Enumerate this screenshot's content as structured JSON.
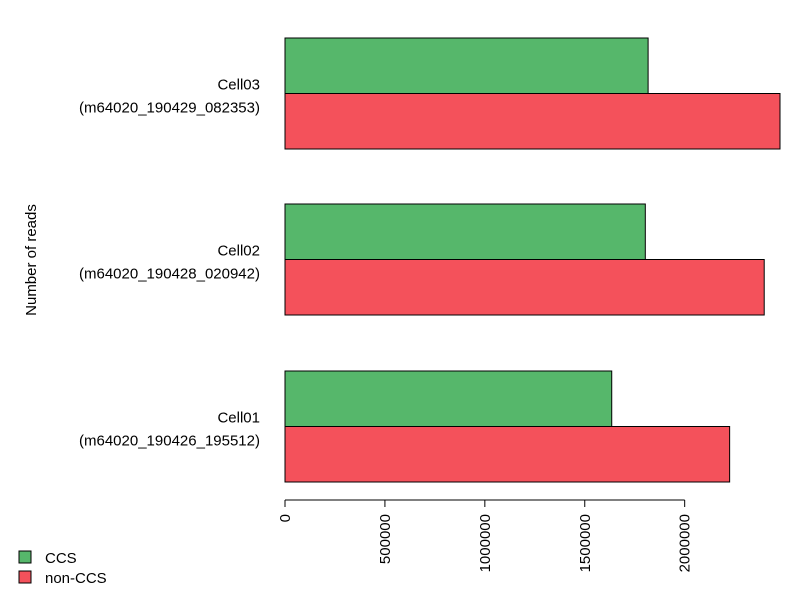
{
  "chart_data": {
    "type": "bar",
    "orientation": "horizontal",
    "categories": [
      {
        "name": "Cell01",
        "id": "(m64020_190426_195512)"
      },
      {
        "name": "Cell02",
        "id": "(m64020_190428_020942)"
      },
      {
        "name": "Cell03",
        "id": "(m64020_190429_082353)"
      }
    ],
    "series": [
      {
        "name": "CCS",
        "color": "#56b76b",
        "values": [
          1635000,
          1803000,
          1817000
        ]
      },
      {
        "name": "non-CCS",
        "color": "#f4515b",
        "values": [
          2225000,
          2398000,
          2477000
        ]
      }
    ],
    "title": "",
    "xlabel": "",
    "ylabel": "Number of reads",
    "xlim": [
      0,
      2477000
    ],
    "ticks": [
      0,
      500000,
      1000000,
      1500000,
      2000000
    ],
    "tick_labels": [
      "0",
      "500000",
      "1000000",
      "1500000",
      "2000000"
    ],
    "legend_position": "bottom-left",
    "grid": false
  }
}
